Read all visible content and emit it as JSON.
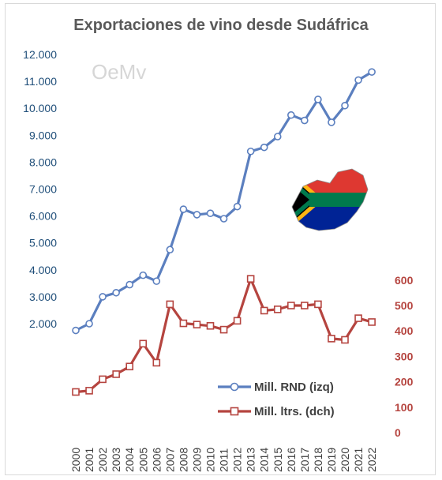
{
  "chart_data": {
    "type": "line",
    "title": "Exportaciones de vino desde Sudáfrica",
    "logo_text": "OeMv",
    "x": [
      "2000",
      "2001",
      "2002",
      "2003",
      "2004",
      "2005",
      "2006",
      "2007",
      "2008",
      "2009",
      "2010",
      "2011",
      "2012",
      "2013",
      "2014",
      "2015",
      "2016",
      "2017",
      "2018",
      "2019",
      "2020",
      "2021",
      "2022"
    ],
    "series": [
      {
        "name": "Mill. RND (izq)",
        "axis": "left",
        "color": "#5b7fbf",
        "marker": "circle",
        "values": [
          1750,
          2000,
          3000,
          3150,
          3450,
          3800,
          3580,
          4750,
          6250,
          6050,
          6100,
          5900,
          6350,
          8400,
          8550,
          8950,
          9750,
          9550,
          10330,
          9480,
          10100,
          11050,
          11350
        ]
      },
      {
        "name": "Mill. ltrs. (dch)",
        "axis": "right",
        "color": "#b5443f",
        "marker": "square",
        "values": [
          160,
          165,
          210,
          230,
          260,
          350,
          275,
          505,
          430,
          425,
          420,
          405,
          440,
          605,
          480,
          485,
          500,
          500,
          505,
          370,
          365,
          450,
          435
        ]
      }
    ],
    "y_left": {
      "min": 0,
      "max": 12000,
      "ticks": [
        "2.000",
        "3.000",
        "4.000",
        "5.000",
        "6.000",
        "7.000",
        "8.000",
        "9.000",
        "10.000",
        "11.000",
        "12.000"
      ],
      "tick_values": [
        2000,
        3000,
        4000,
        5000,
        6000,
        7000,
        8000,
        9000,
        10000,
        11000,
        12000
      ],
      "color": "#1f4e79"
    },
    "y_right": {
      "min": 0,
      "max": 600,
      "ticks": [
        "0",
        "100",
        "200",
        "300",
        "400",
        "500",
        "600"
      ],
      "tick_values": [
        0,
        100,
        200,
        300,
        400,
        500,
        600
      ],
      "color": "#b5443f"
    },
    "legend_position": "bottom-right",
    "grid": false
  }
}
